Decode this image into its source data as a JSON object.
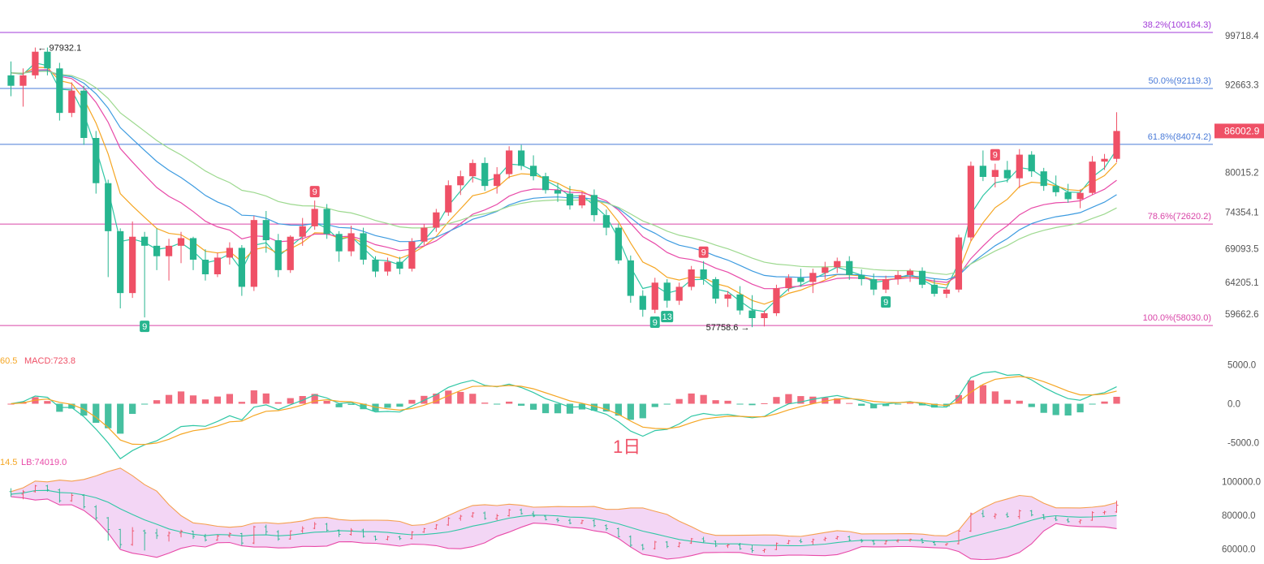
{
  "chart_data": {
    "type": "candlestick",
    "timeframe_label": "1日",
    "colors": {
      "up": "#ef5066",
      "down": "#26b58f",
      "ma_fast": "#30c7a5",
      "ma_mid": "#f5a623",
      "ma_slow": "#e84aa8",
      "ma_long": "#3d9be0",
      "ma_longest": "#9dd98f",
      "fib_382": "#a23bd8",
      "fib_500": "#4a7bd8",
      "fib_618": "#4a7bd8",
      "fib_786": "#d946a8",
      "fib_100": "#d946a8",
      "price_tag": "#ef5066",
      "td_up": "#ef5066",
      "td_down": "#26b58f",
      "grid_text": "#555555",
      "boll_fill": "#f3d6f5",
      "boll_upper": "#f5a050",
      "boll_mid": "#30c7a5",
      "boll_lower": "#e84aa8",
      "macd_dif": "#30c7a5",
      "macd_dea": "#f5a623"
    },
    "price_axis": {
      "labels": [
        "99718.4",
        "92663.3",
        "86002.9",
        "80015.2",
        "74354.1",
        "69093.5",
        "64205.1",
        "59662.6"
      ],
      "range": [
        57000,
        102500
      ]
    },
    "current_price_tag": "86002.9",
    "fib_levels": [
      {
        "label": "38.2%(100164.3)",
        "price": 100164.3,
        "key": "fib_382"
      },
      {
        "label": "50.0%(92119.3)",
        "price": 92119.3,
        "key": "fib_500"
      },
      {
        "label": "61.8%(84074.2)",
        "price": 84074.2,
        "key": "fib_618"
      },
      {
        "label": "78.6%(72620.2)",
        "price": 72620.2,
        "key": "fib_786"
      },
      {
        "label": "100.0%(58030.0)",
        "price": 58030.0,
        "key": "fib_100"
      }
    ],
    "annotations": {
      "high_label": "97932.1",
      "low_label": "57758.6"
    },
    "td_markers": [
      {
        "bar": 11,
        "text": "9",
        "kind": "down"
      },
      {
        "bar": 25,
        "text": "9",
        "kind": "up"
      },
      {
        "bar": 53,
        "text": "9",
        "kind": "down"
      },
      {
        "bar": 54,
        "text": "13",
        "kind": "down"
      },
      {
        "bar": 57,
        "text": "9",
        "kind": "up"
      },
      {
        "bar": 72,
        "text": "9",
        "kind": "down"
      },
      {
        "bar": 81,
        "text": "9",
        "kind": "up"
      }
    ],
    "macd": {
      "labels_text": "60.5",
      "macd_label": "MACD:723.8",
      "axis_labels": [
        "5000.0",
        "0.0",
        "-5000.0"
      ],
      "range": [
        -6000,
        6000
      ]
    },
    "boll": {
      "labels_text": "14.5",
      "lb_label": "LB:74019.0",
      "axis_labels": [
        "100000.0",
        "80000.0",
        "60000.0"
      ],
      "range": [
        56000,
        104000
      ]
    },
    "bars": [
      [
        94000,
        96000,
        91000,
        92500
      ],
      [
        92500,
        95000,
        89500,
        94000
      ],
      [
        94000,
        98000,
        93500,
        97400
      ],
      [
        97400,
        98000,
        94000,
        95000
      ],
      [
        95000,
        95800,
        87500,
        88600
      ],
      [
        88600,
        93000,
        88000,
        91800
      ],
      [
        91800,
        92500,
        84000,
        85000
      ],
      [
        85000,
        86000,
        77000,
        78500
      ],
      [
        78500,
        79000,
        65000,
        71600
      ],
      [
        71600,
        72000,
        60500,
        62700
      ],
      [
        62700,
        73000,
        62000,
        70800
      ],
      [
        70800,
        71500,
        59200,
        69500
      ],
      [
        69500,
        72000,
        66000,
        68000
      ],
      [
        68000,
        70500,
        64500,
        69500
      ],
      [
        69500,
        71500,
        67000,
        70600
      ],
      [
        70600,
        70800,
        66000,
        67500
      ],
      [
        67500,
        69000,
        64500,
        65400
      ],
      [
        65400,
        68500,
        65000,
        67800
      ],
      [
        67800,
        70000,
        66800,
        69200
      ],
      [
        69200,
        69600,
        62300,
        63600
      ],
      [
        63600,
        73800,
        63000,
        73200
      ],
      [
        73200,
        74500,
        68500,
        70300
      ],
      [
        70300,
        71200,
        65000,
        66000
      ],
      [
        66000,
        71000,
        65600,
        70800
      ],
      [
        70800,
        73500,
        69500,
        72300
      ],
      [
        72300,
        76000,
        71800,
        74800
      ],
      [
        74800,
        75500,
        70500,
        71200
      ],
      [
        71200,
        71600,
        67200,
        68700
      ],
      [
        68700,
        72400,
        68000,
        71300
      ],
      [
        71300,
        72100,
        66800,
        67500
      ],
      [
        67500,
        68000,
        65000,
        65800
      ],
      [
        65800,
        67800,
        65200,
        67200
      ],
      [
        67200,
        67900,
        65400,
        66200
      ],
      [
        66200,
        70600,
        65800,
        70100
      ],
      [
        70100,
        72600,
        69600,
        72100
      ],
      [
        72100,
        74800,
        71500,
        74300
      ],
      [
        74300,
        78900,
        73800,
        78200
      ],
      [
        78200,
        80300,
        76800,
        79500
      ],
      [
        79500,
        81900,
        78600,
        81400
      ],
      [
        81400,
        82200,
        77400,
        78100
      ],
      [
        78100,
        80800,
        77000,
        79800
      ],
      [
        79800,
        83800,
        79200,
        83200
      ],
      [
        83200,
        84000,
        80400,
        81000
      ],
      [
        81000,
        82500,
        78900,
        79500
      ],
      [
        79500,
        80000,
        77000,
        77500
      ],
      [
        77500,
        78500,
        75800,
        77000
      ],
      [
        77000,
        78100,
        74700,
        75300
      ],
      [
        75300,
        77300,
        74900,
        76800
      ],
      [
        76800,
        77600,
        73000,
        73900
      ],
      [
        73900,
        74700,
        71000,
        72100
      ],
      [
        72100,
        72700,
        66900,
        67400
      ],
      [
        67400,
        68100,
        61300,
        62300
      ],
      [
        62300,
        63100,
        59300,
        60300
      ],
      [
        60300,
        64900,
        59800,
        64200
      ],
      [
        64200,
        64700,
        60600,
        61600
      ],
      [
        61600,
        64200,
        61000,
        63600
      ],
      [
        63600,
        66600,
        63100,
        66100
      ],
      [
        66100,
        67300,
        63900,
        64700
      ],
      [
        64700,
        65000,
        61200,
        61900
      ],
      [
        61900,
        63000,
        60700,
        62500
      ],
      [
        62500,
        63700,
        59600,
        60200
      ],
      [
        60200,
        62400,
        57800,
        59100
      ],
      [
        59100,
        60200,
        57900,
        59800
      ],
      [
        59800,
        63900,
        59400,
        63400
      ],
      [
        63400,
        65400,
        62900,
        64900
      ],
      [
        64900,
        66200,
        63600,
        64300
      ],
      [
        64300,
        66200,
        62700,
        65600
      ],
      [
        65600,
        67200,
        64700,
        66400
      ],
      [
        66400,
        67800,
        65600,
        67300
      ],
      [
        67300,
        68000,
        64600,
        65300
      ],
      [
        65300,
        66100,
        63800,
        64700
      ],
      [
        64700,
        65500,
        62400,
        63200
      ],
      [
        63200,
        65200,
        62700,
        64700
      ],
      [
        64700,
        65900,
        63900,
        65300
      ],
      [
        65300,
        66200,
        64300,
        65900
      ],
      [
        65900,
        66400,
        63400,
        63900
      ],
      [
        63900,
        64800,
        62200,
        62600
      ],
      [
        62600,
        63500,
        62000,
        63200
      ],
      [
        63200,
        71100,
        62800,
        70700
      ],
      [
        70700,
        81600,
        70200,
        81000
      ],
      [
        81000,
        83200,
        78800,
        79400
      ],
      [
        79400,
        81300,
        77900,
        80400
      ],
      [
        80400,
        81700,
        78600,
        79200
      ],
      [
        79200,
        83400,
        77800,
        82600
      ],
      [
        82600,
        83100,
        79400,
        80200
      ],
      [
        80200,
        80700,
        77400,
        78100
      ],
      [
        78100,
        79600,
        76600,
        77200
      ],
      [
        77200,
        78400,
        75700,
        76200
      ],
      [
        76200,
        77600,
        74900,
        77100
      ],
      [
        77100,
        82400,
        76800,
        81600
      ],
      [
        81600,
        82700,
        80400,
        82000
      ],
      [
        82000,
        88700,
        81500,
        86002.9
      ]
    ]
  }
}
